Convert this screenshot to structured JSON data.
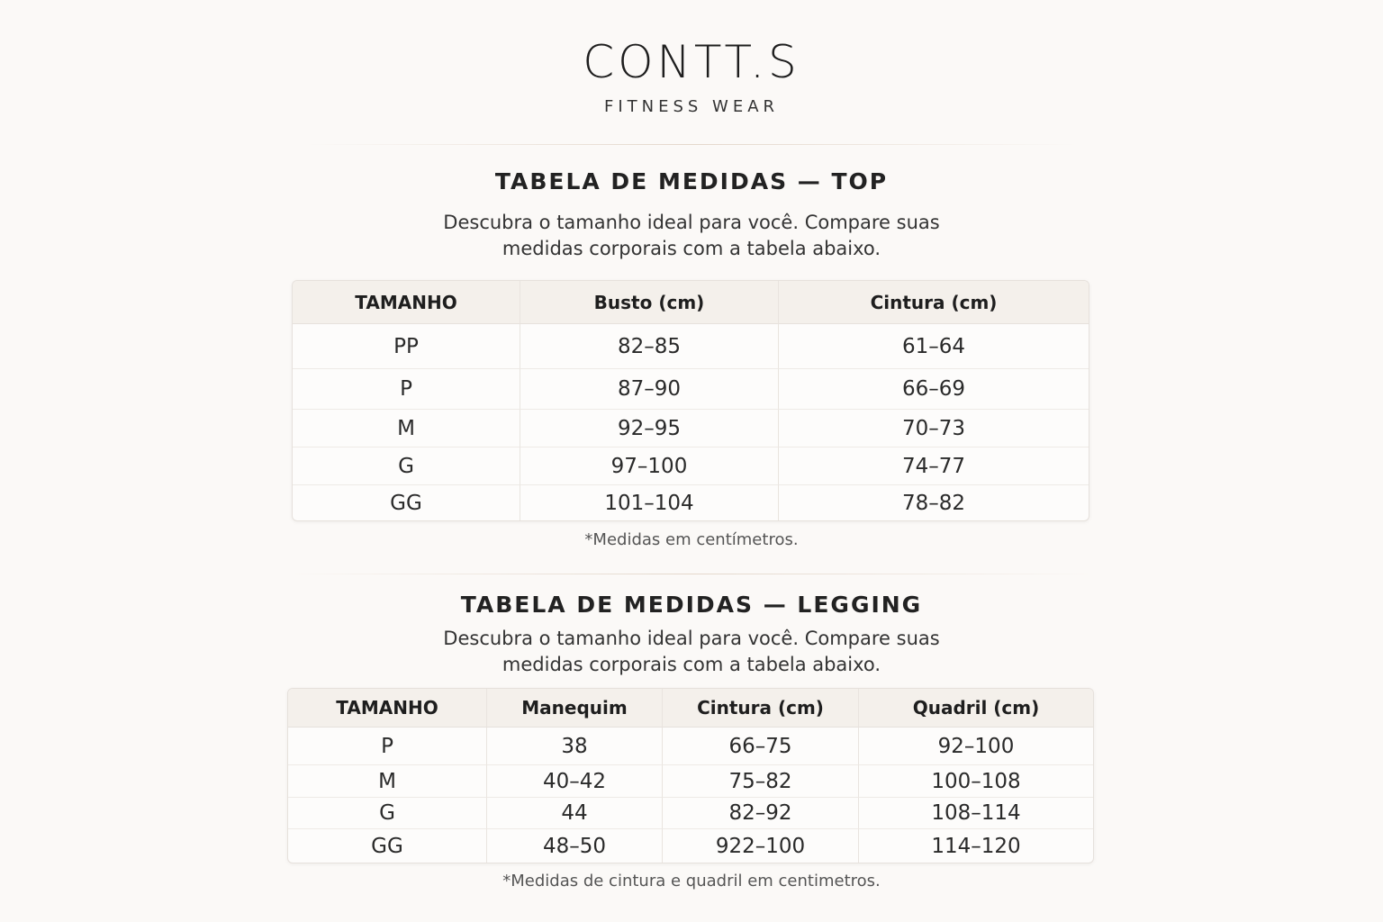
{
  "brand": {
    "name": "CONTT.S",
    "tagline": "FITNESS WEAR"
  },
  "top": {
    "title": "TABELA DE MEDIDAS — TOP",
    "subtitle_line1": "Descubra o tamanho ideal para você. Compare suas",
    "subtitle_line2": "medidas corporais com a tabela abaixo.",
    "headers": [
      "TAMANHO",
      "Busto (cm)",
      "Cintura (cm)"
    ],
    "rows": [
      [
        "PP",
        "82–85",
        "61–64"
      ],
      [
        "P",
        "87–90",
        "66–69"
      ],
      [
        "M",
        "92–95",
        "70–73"
      ],
      [
        "G",
        "97–100",
        "74–77"
      ],
      [
        "GG",
        "101–104",
        "78–82"
      ]
    ],
    "note": "*Medidas em centímetros."
  },
  "legging": {
    "title": "TABELA DE MEDIDAS — LEGGING",
    "subtitle_line1": "Descubra o tamanho ideal para você. Compare suas",
    "subtitle_line2": "medidas corporais com a tabela abaixo.",
    "headers": [
      "TAMANHO",
      "Manequim",
      "Cintura (cm)",
      "Quadril (cm)"
    ],
    "rows": [
      [
        "P",
        "38",
        "66–75",
        "92–100"
      ],
      [
        "M",
        "40–42",
        "75–82",
        "100–108"
      ],
      [
        "G",
        "44",
        "82–92",
        "108–114"
      ],
      [
        "GG",
        "48–50",
        "922–100",
        "114–120"
      ]
    ],
    "note": "*Medidas de cintura e quadril em centimetros."
  }
}
